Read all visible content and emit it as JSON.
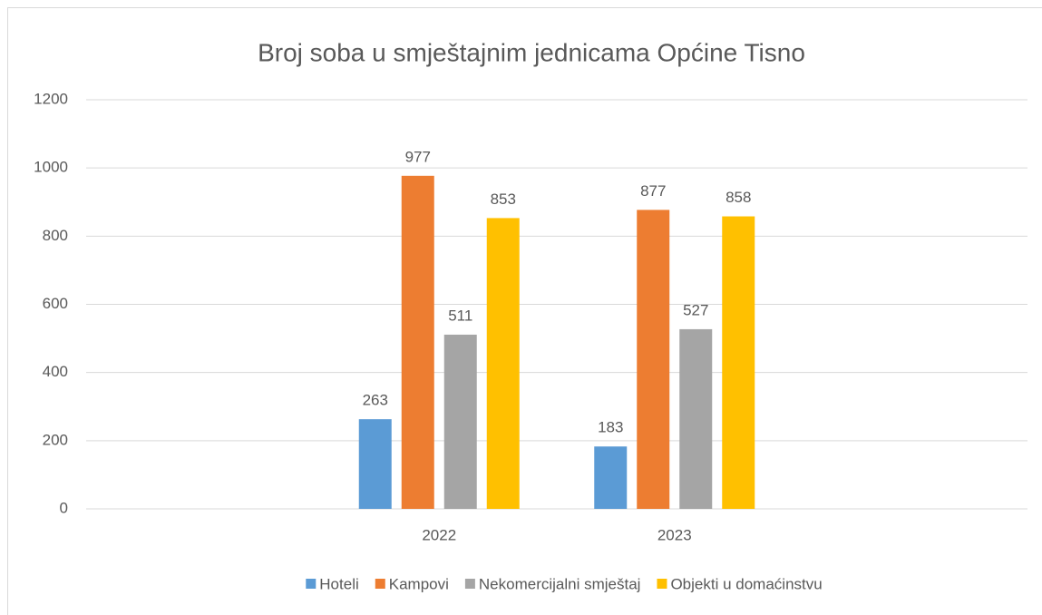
{
  "chart_data": {
    "type": "bar",
    "title": "Broj soba u smještajnim jednicama Općine Tisno",
    "categories": [
      null,
      "2022",
      "2023",
      null
    ],
    "series": [
      {
        "name": "Hoteli",
        "color": "#5b9bd5",
        "values": [
          null,
          263,
          183,
          null
        ]
      },
      {
        "name": "Kampovi",
        "color": "#ed7d31",
        "values": [
          null,
          977,
          877,
          null
        ]
      },
      {
        "name": "Nekomercijalni smještaj",
        "color": "#a5a5a5",
        "values": [
          null,
          511,
          527,
          null
        ]
      },
      {
        "name": "Objekti u domaćinstvu",
        "color": "#ffc000",
        "values": [
          null,
          853,
          858,
          null
        ]
      }
    ],
    "ylim": [
      0,
      1200
    ],
    "yticks": [
      0,
      200,
      400,
      600,
      800,
      1000,
      1200
    ],
    "grid": true,
    "legend": "bottom"
  }
}
